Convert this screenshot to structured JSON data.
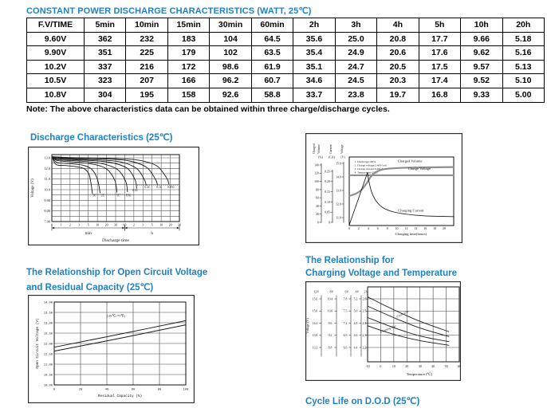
{
  "titles": {
    "table": "CONSTANT POWER DISCHARGE CHARACTERISTICS (WATT, 25℃)",
    "cycle_life": "Cycle Life on D.O.D (25℃)"
  },
  "table": {
    "headers": [
      "F.V/TIME",
      "5min",
      "10min",
      "15min",
      "30min",
      "60min",
      "2h",
      "3h",
      "4h",
      "5h",
      "10h",
      "20h"
    ],
    "rows": [
      [
        "9.60V",
        "362",
        "232",
        "183",
        "104",
        "64.5",
        "35.6",
        "25.0",
        "20.8",
        "17.7",
        "9.66",
        "5.18"
      ],
      [
        "9.90V",
        "351",
        "225",
        "179",
        "102",
        "63.5",
        "35.4",
        "24.9",
        "20.6",
        "17.6",
        "9.62",
        "5.16"
      ],
      [
        "10.2V",
        "337",
        "216",
        "172",
        "98.6",
        "61.9",
        "35.1",
        "24.7",
        "20.5",
        "17.5",
        "9.57",
        "5.13"
      ],
      [
        "10.5V",
        "323",
        "207",
        "166",
        "96.2",
        "60.7",
        "34.6",
        "24.5",
        "20.3",
        "17.4",
        "9.52",
        "5.10"
      ],
      [
        "10.8V",
        "304",
        "195",
        "158",
        "92.6",
        "58.8",
        "33.7",
        "23.8",
        "19.7",
        "16.8",
        "9.33",
        "5.00"
      ]
    ],
    "note": "Note: The above characteristics data can be obtained within three charge/discharge cycles."
  },
  "colors": {
    "accent": "#1f80c4",
    "grid": "#555555",
    "curve": "#1a1a1a",
    "thick_gray": "#8f8f8f"
  },
  "chart_data": [
    {
      "id": "discharge",
      "type": "line",
      "title": "Discharge Characteristics (25℃)",
      "ylabel": "Voltage (V)",
      "xlabel": "Discharge time",
      "x_ticks": [
        "0",
        "1",
        "2",
        "3",
        "5",
        "10",
        "20",
        "30",
        "60",
        "2",
        "3",
        "5",
        "10",
        "20",
        "30"
      ],
      "x_unit_groups": [
        {
          "label": "min",
          "from": 0,
          "to": 8
        },
        {
          "label": "h",
          "from": 8,
          "to": 14
        }
      ],
      "y_ticks": [
        "13.0",
        "12.0",
        "11.0",
        "10.0",
        "9.00",
        "8.00",
        "7.00"
      ],
      "y_tick_values": [
        13,
        12,
        11,
        10,
        9,
        8,
        7
      ],
      "ylim": [
        7.0,
        13.3
      ],
      "grid_step": 0.5,
      "series": [
        {
          "name": "3C",
          "points": [
            [
              0.1,
              12.9
            ],
            [
              0.5,
              12.35
            ],
            [
              1.5,
              12.27
            ],
            [
              2.6,
              12.17
            ],
            [
              3.5,
              12.0
            ],
            [
              4.05,
              11.5
            ],
            [
              4.3,
              10.6
            ],
            [
              4.45,
              9.65
            ]
          ]
        },
        {
          "name": "2C",
          "points": [
            [
              0.1,
              12.95
            ],
            [
              0.6,
              12.55
            ],
            [
              2,
              12.45
            ],
            [
              3.5,
              12.28
            ],
            [
              4.4,
              11.9
            ],
            [
              5.0,
              11.0
            ],
            [
              5.3,
              9.7
            ]
          ]
        },
        {
          "name": "1C",
          "points": [
            [
              0.1,
              13.0
            ],
            [
              0.7,
              12.72
            ],
            [
              2.5,
              12.6
            ],
            [
              4.5,
              12.4
            ],
            [
              6,
              11.95
            ],
            [
              6.9,
              10.9
            ],
            [
              7.15,
              9.75
            ]
          ]
        },
        {
          "name": "0.6C",
          "points": [
            [
              0.1,
              13.0
            ],
            [
              0.8,
              12.8
            ],
            [
              3,
              12.7
            ],
            [
              5.5,
              12.45
            ],
            [
              7.2,
              11.9
            ],
            [
              8.1,
              10.8
            ],
            [
              8.3,
              9.8
            ]
          ]
        },
        {
          "name": "0.3C",
          "points": [
            [
              0.1,
              13.05
            ],
            [
              1,
              12.88
            ],
            [
              4,
              12.76
            ],
            [
              6.5,
              12.55
            ],
            [
              8.3,
              12.0
            ],
            [
              9.15,
              10.9
            ],
            [
              9.3,
              10.12
            ]
          ]
        },
        {
          "name": "0.2C",
          "points": [
            [
              0.1,
              13.05
            ],
            [
              1.2,
              12.92
            ],
            [
              5,
              12.8
            ],
            [
              7.5,
              12.62
            ],
            [
              9.3,
              12.0
            ],
            [
              10.15,
              10.95
            ],
            [
              10.35,
              10.43
            ]
          ]
        },
        {
          "name": "0.1C",
          "points": [
            [
              0.1,
              13.1
            ],
            [
              1.5,
              12.98
            ],
            [
              6,
              12.88
            ],
            [
              8.5,
              12.7
            ],
            [
              10.4,
              12.1
            ],
            [
              11.35,
              11.0
            ],
            [
              11.6,
              10.45
            ]
          ]
        },
        {
          "name": "0.05C",
          "points": [
            [
              0.1,
              13.1
            ],
            [
              2,
              13.02
            ],
            [
              7,
              12.93
            ],
            [
              9.5,
              12.78
            ],
            [
              11.5,
              12.25
            ],
            [
              12.6,
              11.1
            ],
            [
              12.85,
              10.5
            ]
          ]
        }
      ],
      "cutoff_lines": [
        {
          "y": 9.6,
          "from": 4.45,
          "to": 8.55,
          "labels": [
            {
              "text": "3C",
              "x": 4.7
            },
            {
              "text": "2C",
              "x": 5.6
            },
            {
              "text": "1C",
              "x": 7.3
            },
            {
              "text": "0.6C",
              "x": 8.45
            }
          ]
        },
        {
          "y": 10.4,
          "from": 9.35,
          "to": 14,
          "labels": [
            {
              "text": "0.2C",
              "x": 10.5
            },
            {
              "text": "0.1C",
              "x": 11.8
            },
            {
              "text": "0.05C",
              "x": 13.1
            }
          ]
        },
        {
          "y": 10.1,
          "from": 9.3,
          "to": 9.3,
          "labels": [
            {
              "text": "0.3C",
              "x": 9.15
            }
          ]
        }
      ]
    },
    {
      "id": "charging",
      "type": "line",
      "title": "",
      "xlabel": "Charging time(hours)",
      "x_ticks": [
        "0",
        "2",
        "4",
        "6",
        "8",
        "10",
        "12",
        "14",
        "16",
        "18",
        "20"
      ],
      "xlim": [
        0,
        22
      ],
      "notes": [
        "1. Discharge:100%",
        "2. Charge voltage:2.40V/cell",
        "3. Charge current:0.28CA",
        "4. Temperature:25℃"
      ],
      "axes": [
        {
          "title_words": [
            "Charged",
            "Volume"
          ],
          "unit": "(%)",
          "ticks": [
            "0",
            "20",
            "40",
            "60",
            "80",
            "100",
            "120",
            "140"
          ]
        },
        {
          "title_words": [
            "Current"
          ],
          "unit": "(CA)",
          "ticks": [
            "0",
            "0.05",
            "0.10",
            "0.15",
            "0.20",
            "0.25"
          ]
        },
        {
          "title_words": [
            "Voltage"
          ],
          "unit": "(V)",
          "ticks": [
            "11.0",
            "12.0",
            "13.0",
            "14.0",
            "15.0"
          ]
        }
      ],
      "curves": [
        {
          "name": "Charged Volume",
          "thick": true,
          "label_at": [
            10.2,
            15.08
          ],
          "points": [
            [
              0,
              12.6
            ],
            [
              1.5,
              12.78
            ],
            [
              2.6,
              13.05
            ],
            [
              3.6,
              13.5
            ],
            [
              4.4,
              13.95
            ],
            [
              5.2,
              14.25
            ],
            [
              6.5,
              14.5
            ],
            [
              8,
              14.6
            ],
            [
              12,
              14.68
            ],
            [
              22,
              14.73
            ]
          ]
        },
        {
          "name": "Charge Voltage",
          "thick": true,
          "label_at": [
            12.4,
            14.52
          ],
          "points": [
            [
              0,
              14.12
            ],
            [
              22,
              14.12
            ]
          ]
        },
        {
          "name": "",
          "thick": false,
          "label_at": null,
          "points": [
            [
              0,
              10.45
            ],
            [
              3.85,
              14.32
            ]
          ]
        },
        {
          "name": "Charging Current",
          "thick": false,
          "label_at": [
            10.3,
            11.45
          ],
          "points": [
            [
              3.85,
              14.32
            ],
            [
              4.1,
              13.75
            ],
            [
              4.7,
              12.9
            ],
            [
              5.6,
              12.25
            ],
            [
              7,
              11.75
            ],
            [
              9,
              11.45
            ],
            [
              12,
              11.25
            ],
            [
              16,
              11.12
            ],
            [
              22,
              11.07
            ]
          ]
        }
      ]
    },
    {
      "id": "ocv",
      "type": "line",
      "title_line1": "The Relationship for Open Circuit Voltage",
      "title_line2": "and Residual Capacity (25℃)",
      "ylabel": "Open Circuit Voltage (V)",
      "xlabel": "Residual Capacity (%)",
      "annotation": "(25℃/77℉)",
      "x_ticks": [
        "0",
        "20",
        "40",
        "60",
        "80",
        "100"
      ],
      "y_ticks": [
        "14.00",
        "13.50",
        "13.00",
        "12.50",
        "12.00",
        "11.50",
        "11.00",
        "10.50",
        "10.00"
      ],
      "ylim": [
        10,
        14
      ],
      "lines": [
        {
          "points": [
            [
              0,
              11.82
            ],
            [
              50,
              12.45
            ],
            [
              100,
              13.1
            ]
          ]
        },
        {
          "points": [
            [
              0,
              11.63
            ],
            [
              50,
              12.25
            ],
            [
              100,
              12.9
            ]
          ]
        }
      ]
    },
    {
      "id": "temp",
      "type": "line",
      "title_line1": "The Relationship for",
      "title_line2": "Charging Voltage and Temperature",
      "ylabel": "Voltage (V)",
      "xlabel": "Temperature (℃)",
      "x_ticks": [
        "-10",
        "0",
        "10",
        "20",
        "30",
        "40",
        "50",
        "60"
      ],
      "scales": [
        {
          "header": "12V",
          "ticks": [
            "15.6",
            "15.0",
            "14.4",
            "13.8",
            "13.2"
          ]
        },
        {
          "header": "8V",
          "ticks": [
            "10.4",
            "10.0",
            "9.6",
            "9.2",
            "8.8"
          ]
        },
        {
          "header": "6V",
          "ticks": [
            "7.8",
            "7.5",
            "7.2",
            "6.9",
            "6.6"
          ]
        },
        {
          "header": "4V",
          "ticks": [
            "5.2",
            "5.0",
            "4.8",
            "4.6",
            "4.4"
          ]
        },
        {
          "header": "2V",
          "ticks": [
            "2.6",
            "2.5",
            "2.4",
            "2.3",
            "2.2"
          ]
        }
      ],
      "bands": [
        {
          "label": "Cycle Use",
          "label_at": [
            17,
            2.468
          ],
          "rot": -26,
          "upper": [
            [
              -10,
              2.616
            ],
            [
              10,
              2.51
            ],
            [
              30,
              2.415
            ],
            [
              52,
              2.33
            ]
          ],
          "lower": [
            [
              -10,
              2.54
            ],
            [
              10,
              2.445
            ],
            [
              30,
              2.36
            ],
            [
              52,
              2.29
            ]
          ]
        },
        {
          "label": "Floating Use",
          "label_at": [
            6,
            2.345
          ],
          "rot": -22,
          "upper": [
            [
              -10,
              2.446
            ],
            [
              10,
              2.363
            ],
            [
              30,
              2.295
            ],
            [
              52,
              2.248
            ]
          ],
          "lower": [
            [
              -10,
              2.378
            ],
            [
              10,
              2.308
            ],
            [
              30,
              2.256
            ],
            [
              52,
              2.218
            ]
          ]
        }
      ]
    }
  ]
}
